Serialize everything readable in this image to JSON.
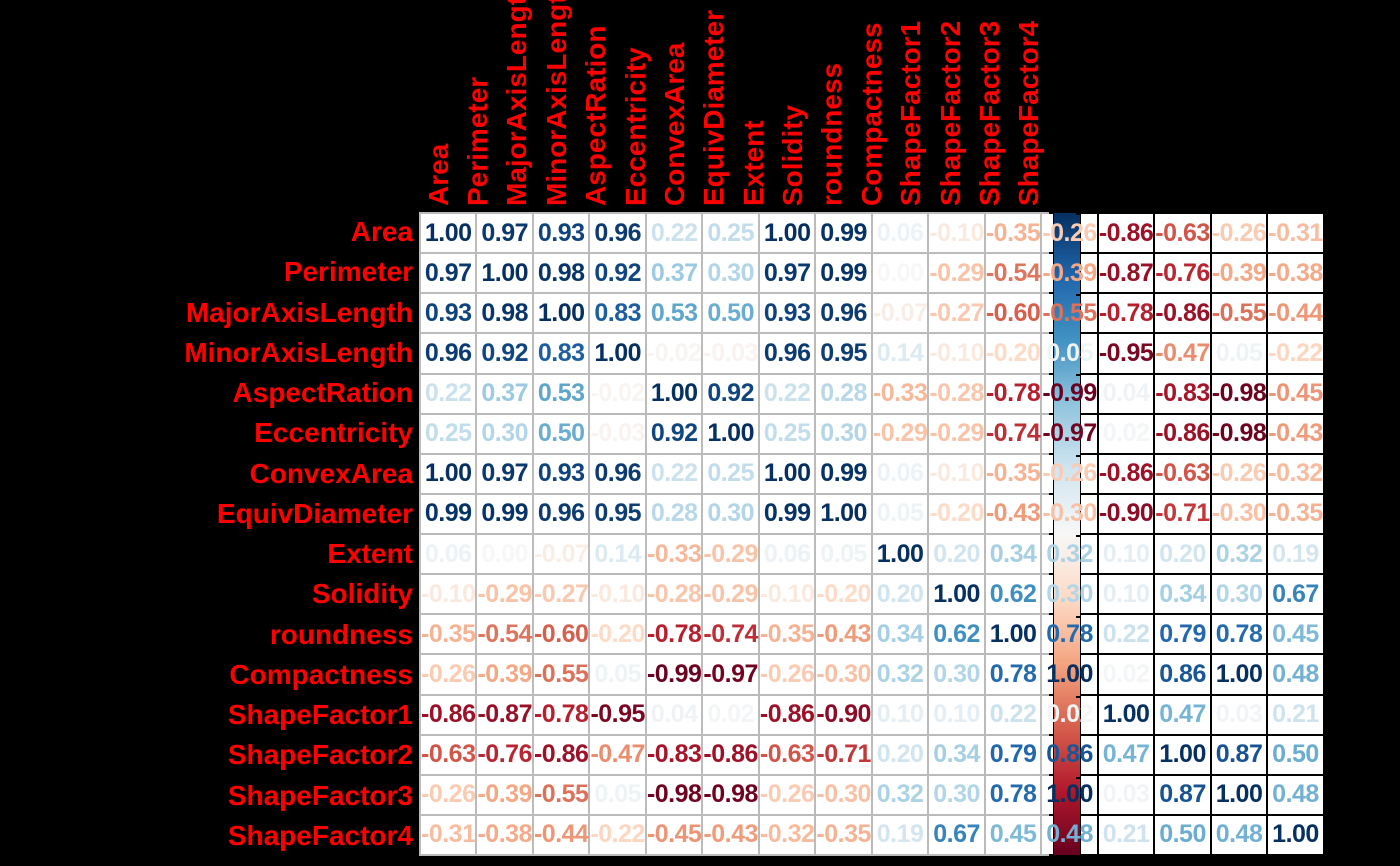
{
  "chart_data": {
    "type": "heatmap",
    "title": "",
    "subtitle": "",
    "legend_position": "right-colorbar",
    "grid": true,
    "categories": [
      "Area",
      "Perimeter",
      "MajorAxisLength",
      "MinorAxisLength",
      "AspectRation",
      "Eccentricity",
      "ConvexArea",
      "EquivDiameter",
      "Extent",
      "Solidity",
      "roundness",
      "Compactness",
      "ShapeFactor1",
      "ShapeFactor2",
      "ShapeFactor3",
      "ShapeFactor4"
    ],
    "matrix": [
      [
        1.0,
        0.97,
        0.93,
        0.96,
        0.22,
        0.25,
        1.0,
        0.99,
        0.06,
        -0.1,
        -0.35,
        -0.26,
        -0.86,
        -0.63,
        -0.26,
        -0.31
      ],
      [
        0.97,
        1.0,
        0.98,
        0.92,
        0.37,
        0.3,
        0.97,
        0.99,
        0.0,
        -0.29,
        -0.54,
        -0.39,
        -0.87,
        -0.76,
        -0.39,
        -0.38
      ],
      [
        0.93,
        0.98,
        1.0,
        0.83,
        0.53,
        0.5,
        0.93,
        0.96,
        -0.07,
        -0.27,
        -0.6,
        -0.55,
        -0.78,
        -0.86,
        -0.55,
        -0.44
      ],
      [
        0.96,
        0.92,
        0.83,
        1.0,
        -0.02,
        -0.03,
        0.96,
        0.95,
        0.14,
        -0.1,
        -0.2,
        0.05,
        -0.95,
        -0.47,
        0.05,
        -0.22
      ],
      [
        0.22,
        0.37,
        0.53,
        -0.02,
        1.0,
        0.92,
        0.22,
        0.28,
        -0.33,
        -0.28,
        -0.78,
        -0.99,
        0.04,
        -0.83,
        -0.98,
        -0.45
      ],
      [
        0.25,
        0.3,
        0.5,
        -0.03,
        0.92,
        1.0,
        0.25,
        0.3,
        -0.29,
        -0.29,
        -0.74,
        -0.97,
        0.02,
        -0.86,
        -0.98,
        -0.43
      ],
      [
        1.0,
        0.97,
        0.93,
        0.96,
        0.22,
        0.25,
        1.0,
        0.99,
        0.06,
        -0.1,
        -0.35,
        -0.26,
        -0.86,
        -0.63,
        -0.26,
        -0.32
      ],
      [
        0.99,
        0.99,
        0.96,
        0.95,
        0.28,
        0.3,
        0.99,
        1.0,
        0.05,
        -0.2,
        -0.43,
        -0.3,
        -0.9,
        -0.71,
        -0.3,
        -0.35
      ],
      [
        0.06,
        0.0,
        -0.07,
        0.14,
        -0.33,
        -0.29,
        0.06,
        0.05,
        1.0,
        0.2,
        0.34,
        0.32,
        0.1,
        0.2,
        0.32,
        0.19
      ],
      [
        -0.1,
        -0.29,
        -0.27,
        -0.1,
        -0.28,
        -0.29,
        -0.1,
        -0.2,
        0.2,
        1.0,
        0.62,
        0.3,
        0.1,
        0.34,
        0.3,
        0.67
      ],
      [
        -0.35,
        -0.54,
        -0.6,
        -0.2,
        -0.78,
        -0.74,
        -0.35,
        -0.43,
        0.34,
        0.62,
        1.0,
        0.78,
        0.22,
        0.79,
        0.78,
        0.45
      ],
      [
        -0.26,
        -0.39,
        -0.55,
        0.05,
        -0.99,
        -0.97,
        -0.26,
        -0.3,
        0.32,
        0.3,
        0.78,
        1.0,
        0.02,
        0.86,
        1.0,
        0.48
      ],
      [
        -0.86,
        -0.87,
        -0.78,
        -0.95,
        0.04,
        0.02,
        -0.86,
        -0.9,
        0.1,
        0.1,
        0.22,
        0.02,
        1.0,
        0.47,
        0.03,
        0.21
      ],
      [
        -0.63,
        -0.76,
        -0.86,
        -0.47,
        -0.83,
        -0.86,
        -0.63,
        -0.71,
        0.2,
        0.34,
        0.79,
        0.86,
        0.47,
        1.0,
        0.87,
        0.5
      ],
      [
        -0.26,
        -0.39,
        -0.55,
        0.05,
        -0.98,
        -0.98,
        -0.26,
        -0.3,
        0.32,
        0.3,
        0.78,
        1.0,
        0.03,
        0.87,
        1.0,
        0.48
      ],
      [
        -0.31,
        -0.38,
        -0.44,
        -0.22,
        -0.45,
        -0.43,
        -0.32,
        -0.35,
        0.19,
        0.67,
        0.45,
        0.48,
        0.21,
        0.5,
        0.48,
        1.0
      ]
    ],
    "value_format": "fixed2",
    "palette": "RdBu"
  },
  "colorbar": {
    "orientation": "vertical",
    "stops": [
      {
        "v": 1.0,
        "color": "#053061"
      },
      {
        "v": 0.8,
        "color": "#2166AC"
      },
      {
        "v": 0.6,
        "color": "#4393C3"
      },
      {
        "v": 0.4,
        "color": "#92C5DE"
      },
      {
        "v": 0.2,
        "color": "#D1E5F0"
      },
      {
        "v": 0.0,
        "color": "#F7F7F7"
      },
      {
        "v": -0.2,
        "color": "#FDDBC7"
      },
      {
        "v": -0.4,
        "color": "#F4A582"
      },
      {
        "v": -0.6,
        "color": "#D6604D"
      },
      {
        "v": -0.8,
        "color": "#B2182B"
      },
      {
        "v": -1.0,
        "color": "#67001F"
      }
    ]
  },
  "colors": {
    "background": "#000000",
    "label_color": "#FF0000",
    "cell_background": "#FFFFFF",
    "grid_line": "#BBBBBB"
  }
}
